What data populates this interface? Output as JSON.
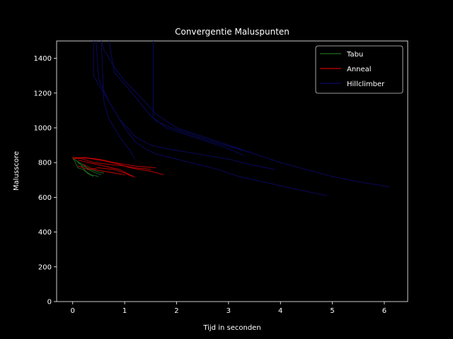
{
  "chart_data": {
    "type": "line",
    "title": "Convergentie Maluspunten",
    "xlabel": "Tijd in seconden",
    "ylabel": "Malusscore",
    "xlim": [
      -0.31,
      6.45
    ],
    "ylim": [
      0,
      1500
    ],
    "xticks": [
      0,
      1,
      2,
      3,
      4,
      5,
      6
    ],
    "yticks": [
      0,
      200,
      400,
      600,
      800,
      1000,
      1200,
      1400
    ],
    "grid": false,
    "legend_position": "top-right",
    "background": "#000000",
    "foreground": "#ffffff",
    "series": [
      {
        "name": "Tabu",
        "color": "#1f6b1f",
        "runs": [
          {
            "x": [
              0.0,
              0.05,
              0.1,
              0.2,
              0.3,
              0.4
            ],
            "y": [
              830,
              800,
              770,
              760,
              735,
              720
            ]
          },
          {
            "x": [
              0.0,
              0.1,
              0.2,
              0.3,
              0.45,
              0.55
            ],
            "y": [
              825,
              805,
              790,
              760,
              740,
              730
            ]
          },
          {
            "x": [
              0.05,
              0.15,
              0.25,
              0.35,
              0.5
            ],
            "y": [
              815,
              790,
              750,
              730,
              720
            ]
          },
          {
            "x": [
              0.1,
              0.2,
              0.35,
              0.5,
              0.6
            ],
            "y": [
              800,
              780,
              760,
              745,
              740
            ]
          }
        ]
      },
      {
        "name": "Anneal",
        "color": "#cc0000",
        "runs": [
          {
            "x": [
              0.0,
              0.3,
              0.6,
              0.9,
              1.1,
              1.3,
              1.5,
              1.75
            ],
            "y": [
              830,
              825,
              810,
              790,
              770,
              760,
              750,
              730
            ]
          },
          {
            "x": [
              0.0,
              0.2,
              0.5,
              0.8,
              1.0,
              1.2,
              1.4,
              1.6
            ],
            "y": [
              820,
              830,
              820,
              800,
              790,
              780,
              775,
              770
            ]
          },
          {
            "x": [
              0.0,
              0.2,
              0.4,
              0.7,
              1.0,
              1.2,
              1.4,
              1.5
            ],
            "y": [
              830,
              820,
              800,
              790,
              780,
              770,
              765,
              760
            ]
          },
          {
            "x": [
              0.1,
              0.3,
              0.6,
              0.9,
              1.1,
              1.2
            ],
            "y": [
              815,
              800,
              780,
              760,
              730,
              715
            ]
          },
          {
            "x": [
              0.1,
              0.3,
              0.5,
              0.8,
              1.0,
              1.15
            ],
            "y": [
              780,
              760,
              770,
              760,
              740,
              720
            ]
          },
          {
            "x": [
              0.2,
              0.4,
              0.6,
              0.8,
              1.0
            ],
            "y": [
              790,
              760,
              750,
              740,
              730
            ]
          }
        ]
      },
      {
        "name": "Hillclimber",
        "color": "#0a0a66",
        "runs": [
          {
            "x": [
              0.4,
              0.4,
              0.6,
              0.8,
              1.0,
              1.2,
              1.4,
              1.6,
              2.0,
              2.4,
              2.8,
              3.2,
              3.8,
              4.4,
              4.9
            ],
            "y": [
              1500,
              1300,
              1200,
              1100,
              1000,
              920,
              880,
              850,
              820,
              790,
              760,
              720,
              680,
              640,
              610
            ]
          },
          {
            "x": [
              0.55,
              0.6,
              0.8,
              1.0,
              1.3,
              1.6,
              2.0,
              2.5,
              3.0,
              3.5,
              4.0,
              4.5,
              5.0,
              5.5,
              6.1
            ],
            "y": [
              1500,
              1450,
              1350,
              1270,
              1180,
              1080,
              1000,
              950,
              900,
              850,
              800,
              760,
              720,
              690,
              660
            ]
          },
          {
            "x": [
              0.45,
              0.5,
              0.7,
              0.9,
              1.2,
              1.5,
              1.8,
              2.2,
              2.6,
              3.0,
              3.4,
              3.9
            ],
            "y": [
              1500,
              1280,
              1150,
              1050,
              950,
              900,
              880,
              860,
              840,
              820,
              790,
              760
            ]
          },
          {
            "x": [
              0.7,
              0.8,
              1.0,
              1.2,
              1.5,
              1.8,
              2.1,
              2.5,
              3.0,
              3.3
            ],
            "y": [
              1500,
              1320,
              1250,
              1180,
              1070,
              1000,
              970,
              930,
              880,
              840
            ]
          },
          {
            "x": [
              1.55,
              1.55,
              1.6,
              1.9,
              2.3,
              2.8,
              3.4
            ],
            "y": [
              1500,
              1060,
              1040,
              1000,
              960,
              910,
              860
            ]
          },
          {
            "x": [
              0.55,
              0.6,
              0.7,
              0.9,
              1.1,
              1.2
            ],
            "y": [
              1500,
              1150,
              1050,
              950,
              870,
              820
            ]
          }
        ]
      }
    ]
  }
}
